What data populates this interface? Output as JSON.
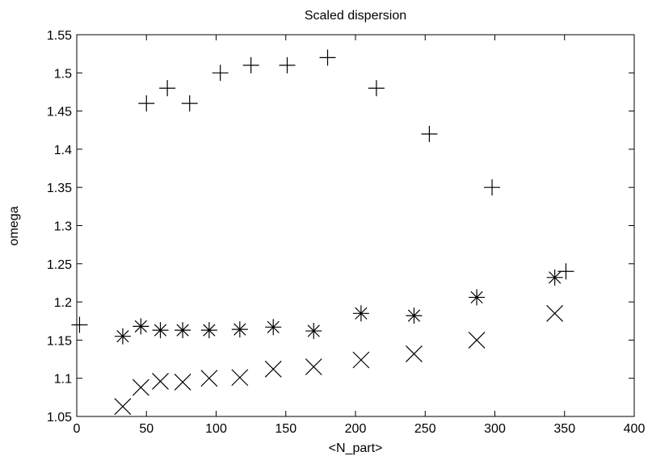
{
  "chart_data": {
    "type": "scatter",
    "title": "Scaled dispersion",
    "xlabel": "<N_part>",
    "ylabel": "omega",
    "xlim": [
      0,
      400
    ],
    "ylim": [
      1.05,
      1.55
    ],
    "xticks": [
      "0",
      "50",
      "100",
      "150",
      "200",
      "250",
      "300",
      "350",
      "400"
    ],
    "yticks": [
      "1.05",
      "1.1",
      "1.15",
      "1.2",
      "1.25",
      "1.3",
      "1.35",
      "1.4",
      "1.45",
      "1.5",
      "1.55"
    ],
    "grid": false,
    "series": [
      {
        "marker": "plus",
        "color": "#000000",
        "x": [
          2,
          50,
          65,
          81,
          103,
          125,
          151,
          180,
          215,
          253,
          298,
          351
        ],
        "y": [
          1.17,
          1.46,
          1.48,
          1.46,
          1.5,
          1.51,
          1.51,
          1.52,
          1.48,
          1.42,
          1.35,
          1.24
        ]
      },
      {
        "marker": "asterisk",
        "color": "#000000",
        "x": [
          33,
          46,
          60,
          76,
          95,
          117,
          141,
          170,
          204,
          242,
          287,
          343
        ],
        "y": [
          1.155,
          1.168,
          1.163,
          1.163,
          1.163,
          1.164,
          1.167,
          1.162,
          1.185,
          1.182,
          1.206,
          1.232
        ]
      },
      {
        "marker": "x",
        "color": "#000000",
        "x": [
          33,
          46,
          60,
          76,
          95,
          117,
          141,
          170,
          204,
          242,
          287,
          343
        ],
        "y": [
          1.063,
          1.088,
          1.096,
          1.095,
          1.1,
          1.101,
          1.112,
          1.115,
          1.124,
          1.132,
          1.15,
          1.185
        ]
      }
    ]
  }
}
